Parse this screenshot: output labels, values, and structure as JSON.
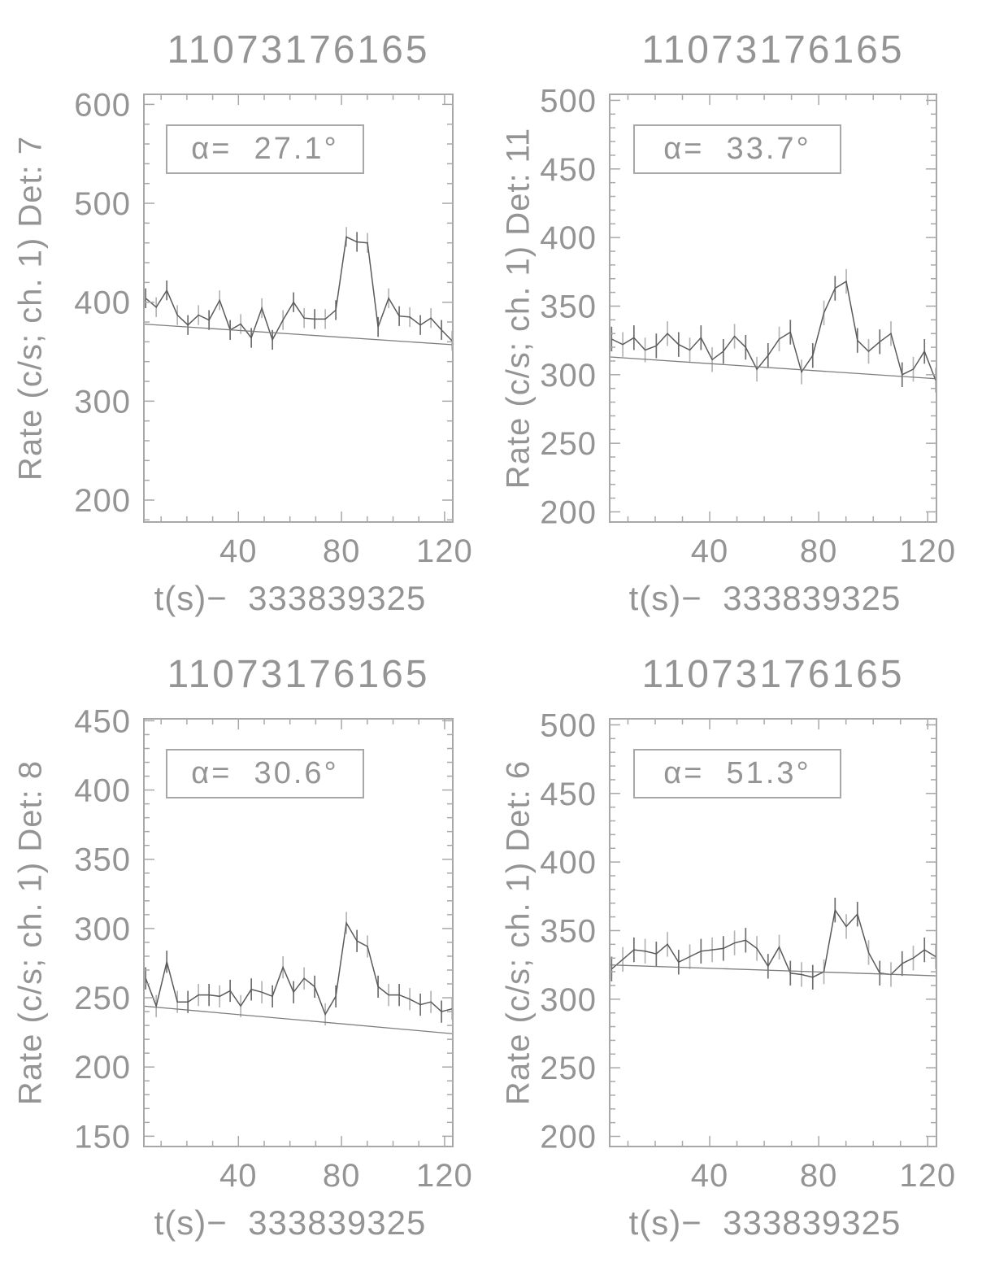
{
  "colors": {
    "background": "#ffffff",
    "text": "#949494",
    "frame": "#a8a8a8",
    "curve": "#5a5a5a",
    "trend": "#7d7d7d",
    "error_bar_dark": "#6f6f6f",
    "error_bar_light": "#b5b5b5"
  },
  "chart_data": [
    {
      "type": "line",
      "detector": "7",
      "title": "11073176165",
      "ylabel": "Rate (c/s; ch. 1) Det: 7",
      "xlabel": "t(s)−  333839325",
      "alpha_label": "α=  27.1°",
      "xlim": [
        3,
        123.5
      ],
      "ylim": [
        177,
        611
      ],
      "xticks": [
        40,
        80,
        120
      ],
      "x_minor_step": 10,
      "yticks": [
        200,
        300,
        400,
        500,
        600
      ],
      "y_minor_step": 20,
      "x": [
        4.0,
        8.1,
        12.2,
        16.3,
        20.4,
        24.5,
        28.6,
        32.7,
        36.8,
        40.9,
        45.0,
        49.1,
        53.2,
        57.3,
        61.4,
        65.5,
        69.6,
        73.7,
        77.8,
        81.9,
        86.0,
        90.1,
        94.2,
        98.3,
        102.4,
        106.5,
        110.6,
        114.7,
        118.8,
        122.9
      ],
      "rate": [
        404,
        395,
        412,
        387,
        377,
        387,
        382,
        402,
        372,
        378,
        364,
        394,
        362,
        382,
        400,
        384,
        383,
        383,
        392,
        466,
        461,
        460,
        375,
        404,
        386,
        385,
        377,
        384,
        372,
        361
      ],
      "err": 10,
      "trend": [
        378,
        357
      ]
    },
    {
      "type": "line",
      "detector": "11",
      "title": "11073176165",
      "ylabel": "Rate (c/s; ch. 1) Det: 11",
      "xlabel": "t(s)−  333839325",
      "alpha_label": "α=  33.7°",
      "xlim": [
        3,
        123.5
      ],
      "ylim": [
        192,
        505
      ],
      "xticks": [
        40,
        80,
        120
      ],
      "x_minor_step": 10,
      "yticks": [
        200,
        250,
        300,
        350,
        400,
        450,
        500
      ],
      "y_minor_step": 10,
      "x": [
        4.0,
        8.1,
        12.2,
        16.3,
        20.4,
        24.5,
        28.6,
        32.7,
        36.8,
        40.9,
        45.0,
        49.1,
        53.2,
        57.3,
        61.4,
        65.5,
        69.6,
        73.7,
        77.8,
        81.9,
        86.0,
        90.1,
        94.2,
        98.3,
        102.4,
        106.5,
        110.6,
        114.7,
        118.8,
        122.9
      ],
      "rate": [
        326,
        322,
        327,
        318,
        321,
        330,
        322,
        318,
        327,
        311,
        317,
        328,
        320,
        304,
        314,
        326,
        331,
        302,
        314,
        345,
        363,
        368,
        325,
        317,
        324,
        330,
        300,
        304,
        317,
        296
      ],
      "err": 9,
      "trend": [
        313,
        297
      ]
    },
    {
      "type": "line",
      "detector": "8",
      "title": "11073176165",
      "ylabel": "Rate (c/s; ch. 1) Det: 8",
      "xlabel": "t(s)−  333839325",
      "alpha_label": "α=  30.6°",
      "xlim": [
        3,
        123.5
      ],
      "ylim": [
        142,
        452
      ],
      "xticks": [
        40,
        80,
        120
      ],
      "x_minor_step": 10,
      "yticks": [
        150,
        200,
        250,
        300,
        350,
        400,
        450
      ],
      "y_minor_step": 10,
      "x": [
        4.0,
        8.1,
        12.2,
        16.3,
        20.4,
        24.5,
        28.6,
        32.7,
        36.8,
        40.9,
        45.0,
        49.1,
        53.2,
        57.3,
        61.4,
        65.5,
        69.6,
        73.7,
        77.8,
        81.9,
        86.0,
        90.1,
        94.2,
        98.3,
        102.4,
        106.5,
        110.6,
        114.7,
        118.8,
        122.9
      ],
      "rate": [
        264,
        244,
        276,
        247,
        247,
        252,
        252,
        251,
        255,
        244,
        256,
        254,
        251,
        272,
        254,
        264,
        258,
        238,
        251,
        304,
        291,
        287,
        258,
        252,
        252,
        249,
        245,
        247,
        240,
        242
      ],
      "err": 8,
      "trend": [
        244,
        224
      ]
    },
    {
      "type": "line",
      "detector": "6",
      "title": "11073176165",
      "ylabel": "Rate (c/s; ch. 1) Det: 6",
      "xlabel": "t(s)−  333839325",
      "alpha_label": "α=  51.3°",
      "xlim": [
        3,
        123.5
      ],
      "ylim": [
        192,
        505
      ],
      "xticks": [
        40,
        80,
        120
      ],
      "x_minor_step": 10,
      "yticks": [
        200,
        250,
        300,
        350,
        400,
        450,
        500
      ],
      "y_minor_step": 10,
      "x": [
        4.0,
        8.1,
        12.2,
        16.3,
        20.4,
        24.5,
        28.6,
        32.7,
        36.8,
        40.9,
        45.0,
        49.1,
        53.2,
        57.3,
        61.4,
        65.5,
        69.6,
        73.7,
        77.8,
        81.9,
        86.0,
        90.1,
        94.2,
        98.3,
        102.4,
        106.5,
        110.6,
        114.7,
        118.8,
        122.9
      ],
      "rate": [
        322,
        329,
        336,
        335,
        333,
        340,
        327,
        331,
        335,
        336,
        337,
        341,
        343,
        337,
        324,
        338,
        319,
        318,
        316,
        320,
        365,
        353,
        362,
        334,
        319,
        318,
        326,
        330,
        336,
        331
      ],
      "err": 9,
      "trend": [
        325,
        317
      ]
    }
  ]
}
